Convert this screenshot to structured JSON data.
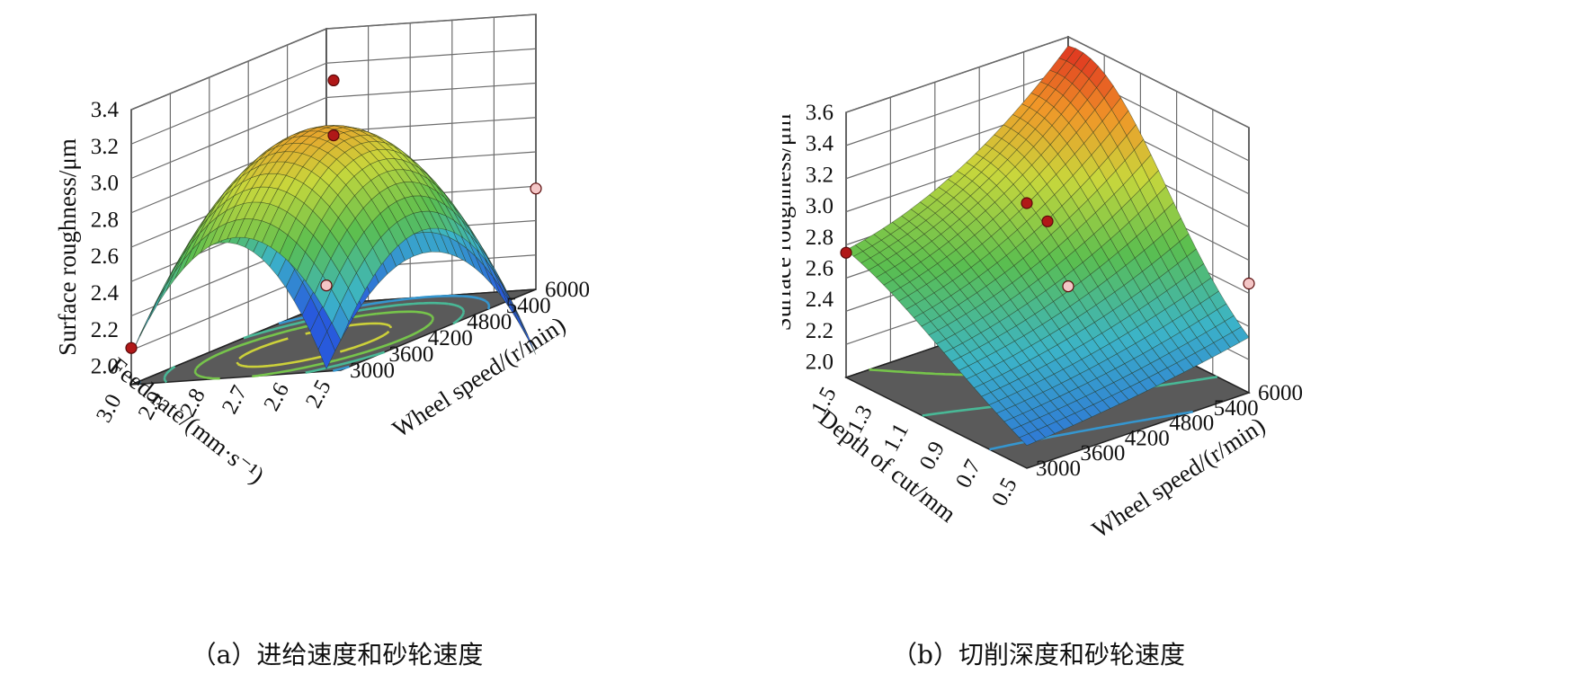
{
  "chart_data": [
    {
      "type": "surface3d",
      "caption": "（a）进给速度和砂轮速度",
      "zlabel": "Surface roughness/μm",
      "xlabel": "Feed rate/(mm·s⁻¹)",
      "ylabel": "Wheel speed/(r/min)",
      "z_ticks": [
        "2.0",
        "2.2",
        "2.4",
        "2.6",
        "2.8",
        "3.0",
        "3.2",
        "3.4"
      ],
      "z_range": [
        1.9,
        3.4
      ],
      "x_ticks": [
        "3.0",
        "2.9",
        "2.8",
        "2.7",
        "2.6",
        "2.5"
      ],
      "x_range": [
        3.0,
        2.5
      ],
      "y_ticks": [
        "3000",
        "3600",
        "4200",
        "4800",
        "5400",
        "6000"
      ],
      "y_range": [
        3000,
        6000
      ],
      "surface_peak": {
        "x": 2.75,
        "y": 4400,
        "z": 3.05
      },
      "design_points": [
        {
          "x": 3.0,
          "y": 3000,
          "z": 2.1
        },
        {
          "x": 2.75,
          "y": 4500,
          "z": 3.3
        },
        {
          "x": 2.75,
          "y": 4500,
          "z": 3.0
        },
        {
          "x": 2.5,
          "y": 3000,
          "z": 2.0
        },
        {
          "x": 2.5,
          "y": 6000,
          "z": 2.45
        }
      ]
    },
    {
      "type": "surface3d",
      "caption": "（b）切削深度和砂轮速度",
      "zlabel": "Surface roughness/μm",
      "xlabel": "Depth of cut/mm",
      "ylabel": "Wheel speed/(r/min)",
      "z_ticks": [
        "2.0",
        "2.2",
        "2.4",
        "2.6",
        "2.8",
        "3.0",
        "3.2",
        "3.4",
        "3.6"
      ],
      "z_range": [
        1.9,
        3.6
      ],
      "x_ticks": [
        "1.5",
        "1.3",
        "1.1",
        "0.9",
        "0.7",
        "0.5"
      ],
      "x_range": [
        1.5,
        0.5
      ],
      "y_ticks": [
        "3000",
        "3600",
        "4200",
        "4800",
        "5400",
        "6000"
      ],
      "y_range": [
        3000,
        6000
      ],
      "surface_peak": {
        "x": 1.5,
        "y": 5800,
        "z": 3.6
      },
      "design_points": [
        {
          "x": 1.5,
          "y": 3000,
          "z": 2.7
        },
        {
          "x": 1.5,
          "y": 6000,
          "z": 3.6
        },
        {
          "x": 1.0,
          "y": 4500,
          "z": 2.95
        },
        {
          "x": 0.5,
          "y": 3000,
          "z": 2.0
        },
        {
          "x": 0.5,
          "y": 6000,
          "z": 2.6
        }
      ]
    }
  ]
}
